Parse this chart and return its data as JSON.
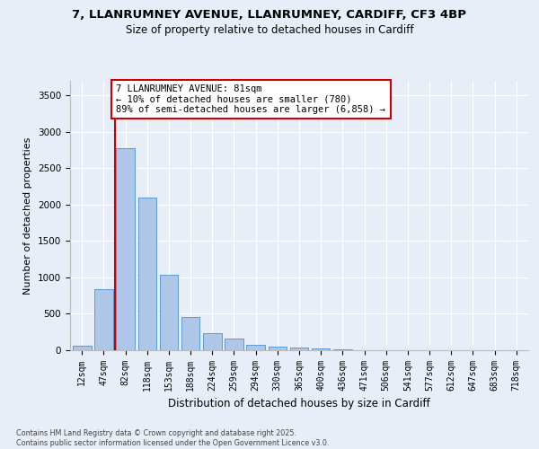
{
  "title_line1": "7, LLANRUMNEY AVENUE, LLANRUMNEY, CARDIFF, CF3 4BP",
  "title_line2": "Size of property relative to detached houses in Cardiff",
  "xlabel": "Distribution of detached houses by size in Cardiff",
  "ylabel": "Number of detached properties",
  "categories": [
    "12sqm",
    "47sqm",
    "82sqm",
    "118sqm",
    "153sqm",
    "188sqm",
    "224sqm",
    "259sqm",
    "294sqm",
    "330sqm",
    "365sqm",
    "400sqm",
    "436sqm",
    "471sqm",
    "506sqm",
    "541sqm",
    "577sqm",
    "612sqm",
    "647sqm",
    "683sqm",
    "718sqm"
  ],
  "values": [
    60,
    840,
    2780,
    2100,
    1030,
    460,
    240,
    160,
    80,
    55,
    35,
    20,
    10,
    5,
    2,
    0,
    0,
    0,
    0,
    0,
    0
  ],
  "bar_color": "#aec6e8",
  "bar_edge_color": "#5b9bd5",
  "vline_color": "#cc0000",
  "vline_position": 1.5,
  "annotation_text": "7 LLANRUMNEY AVENUE: 81sqm\n← 10% of detached houses are smaller (780)\n89% of semi-detached houses are larger (6,858) →",
  "annotation_box_facecolor": "#ffffff",
  "annotation_box_edgecolor": "#cc0000",
  "ylim": [
    0,
    3700
  ],
  "yticks": [
    0,
    500,
    1000,
    1500,
    2000,
    2500,
    3000,
    3500
  ],
  "background_color": "#e8eef8",
  "grid_color": "#ffffff",
  "footer_line1": "Contains HM Land Registry data © Crown copyright and database right 2025.",
  "footer_line2": "Contains public sector information licensed under the Open Government Licence v3.0."
}
